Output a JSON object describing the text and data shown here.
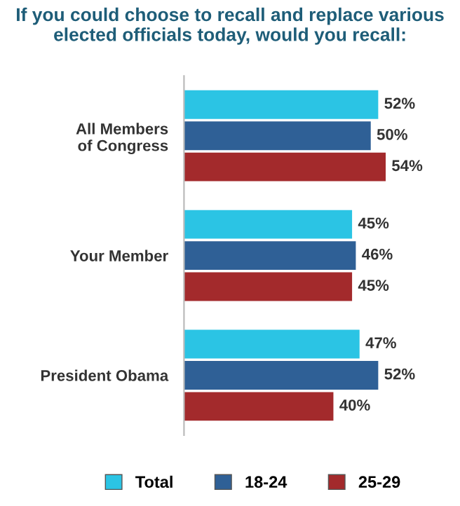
{
  "chart_data": {
    "type": "bar",
    "orientation": "horizontal",
    "title": "If you could choose to recall and replace various elected officials today, would you recall:",
    "categories": [
      "All Members\nof Congress",
      "Your Member",
      "President Obama"
    ],
    "series": [
      {
        "name": "Total",
        "color": "#2bc4e4",
        "values": [
          52,
          45,
          47
        ],
        "value_labels": [
          "52%",
          "45%",
          "47%"
        ]
      },
      {
        "name": "18-24",
        "color": "#2f6096",
        "values": [
          50,
          46,
          52
        ],
        "value_labels": [
          "50%",
          "46%",
          "52%"
        ]
      },
      {
        "name": "25-29",
        "color": "#a32a2c",
        "values": [
          54,
          45,
          40
        ],
        "value_labels": [
          "54%",
          "45%",
          "40%"
        ]
      }
    ],
    "legend": "bottom",
    "grid": false
  }
}
